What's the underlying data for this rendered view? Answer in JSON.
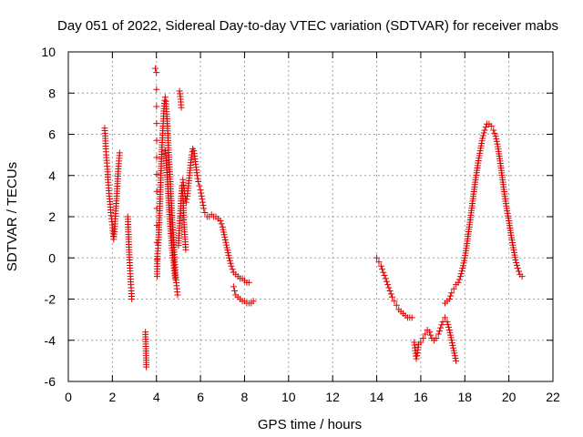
{
  "chart_data": {
    "type": "scatter",
    "title": "Day 051 of 2022, Sidereal Day-to-day VTEC variation (SDTVAR) for receiver mabs",
    "xlabel": "GPS time / hours",
    "ylabel": "SDTVAR / TECUs",
    "xlim": [
      0,
      22
    ],
    "ylim": [
      -6,
      10
    ],
    "xticks": [
      0,
      2,
      4,
      6,
      8,
      10,
      12,
      14,
      16,
      18,
      20,
      22
    ],
    "yticks": [
      -6,
      -4,
      -2,
      0,
      2,
      4,
      6,
      8,
      10
    ],
    "xtick_labels": [
      "0",
      "2",
      "4",
      "6",
      "8",
      "10",
      "12",
      "14",
      "16",
      "18",
      "20",
      "22"
    ],
    "ytick_labels": [
      "-6",
      "-4",
      "-2",
      "0",
      "2",
      "4",
      "6",
      "8",
      "10"
    ],
    "grid": true,
    "marker": "+",
    "color": "#e00000",
    "series": [
      {
        "name": "SDTVAR",
        "segments": [
          {
            "points": [
              [
                1.65,
                6.3
              ],
              [
                1.68,
                5.8
              ],
              [
                1.7,
                5.3
              ],
              [
                1.72,
                5.0
              ],
              [
                1.75,
                4.6
              ],
              [
                1.78,
                4.3
              ],
              [
                1.8,
                3.8
              ],
              [
                1.83,
                3.4
              ],
              [
                1.86,
                3.0
              ],
              [
                1.9,
                2.6
              ],
              [
                1.93,
                2.2
              ],
              [
                1.96,
                1.9
              ],
              [
                2.0,
                1.6
              ],
              [
                2.03,
                1.2
              ],
              [
                2.06,
                0.9
              ],
              [
                2.1,
                1.4
              ],
              [
                2.13,
                1.9
              ],
              [
                2.16,
                2.4
              ],
              [
                2.2,
                3.0
              ],
              [
                2.23,
                3.6
              ],
              [
                2.26,
                4.2
              ],
              [
                2.3,
                4.7
              ],
              [
                2.33,
                5.1
              ]
            ]
          },
          {
            "points": [
              [
                2.7,
                2.0
              ],
              [
                2.72,
                1.5
              ],
              [
                2.74,
                0.9
              ],
              [
                2.76,
                0.4
              ],
              [
                2.78,
                -0.1
              ],
              [
                2.8,
                -0.5
              ],
              [
                2.82,
                -0.9
              ],
              [
                2.84,
                -1.3
              ],
              [
                2.86,
                -1.6
              ],
              [
                2.88,
                -2.0
              ]
            ]
          },
          {
            "points": [
              [
                3.5,
                -3.6
              ],
              [
                3.52,
                -4.3
              ],
              [
                3.54,
                -5.3
              ]
            ]
          },
          {
            "points": [
              [
                3.95,
                9.2
              ],
              [
                4.0,
                9.0
              ],
              [
                4.03,
                -0.9
              ],
              [
                4.05,
                0.2
              ],
              [
                4.08,
                0.6
              ],
              [
                4.1,
                1.0
              ],
              [
                4.12,
                1.6
              ],
              [
                4.15,
                2.4
              ],
              [
                4.18,
                3.2
              ],
              [
                4.2,
                4.0
              ],
              [
                4.23,
                4.8
              ],
              [
                4.26,
                5.6
              ],
              [
                4.3,
                6.4
              ],
              [
                4.33,
                7.0
              ],
              [
                4.36,
                7.5
              ],
              [
                4.4,
                7.8
              ],
              [
                4.43,
                7.6
              ],
              [
                4.46,
                7.1
              ],
              [
                4.5,
                6.4
              ],
              [
                4.53,
                5.7
              ],
              [
                4.56,
                5.0
              ],
              [
                4.6,
                4.3
              ],
              [
                4.63,
                3.7
              ],
              [
                4.66,
                3.0
              ],
              [
                4.7,
                2.3
              ],
              [
                4.73,
                1.6
              ],
              [
                4.76,
                1.0
              ],
              [
                4.8,
                0.4
              ],
              [
                4.83,
                -0.2
              ],
              [
                4.86,
                -0.7
              ],
              [
                4.9,
                -1.2
              ],
              [
                4.93,
                -1.5
              ],
              [
                4.96,
                -1.8
              ]
            ]
          },
          {
            "points": [
              [
                4.4,
                5.2
              ],
              [
                4.45,
                4.6
              ],
              [
                4.5,
                3.8
              ],
              [
                4.55,
                2.9
              ],
              [
                4.6,
                2.0
              ],
              [
                4.65,
                1.3
              ],
              [
                4.7,
                0.6
              ],
              [
                4.75,
                0.0
              ],
              [
                4.8,
                -0.5
              ],
              [
                4.85,
                -1.0
              ]
            ]
          },
          {
            "points": [
              [
                5.0,
                0.6
              ],
              [
                5.03,
                1.2
              ],
              [
                5.06,
                1.8
              ],
              [
                5.1,
                2.4
              ],
              [
                5.13,
                3.0
              ],
              [
                5.16,
                3.5
              ],
              [
                5.2,
                3.0
              ],
              [
                5.23,
                2.3
              ],
              [
                5.26,
                1.5
              ],
              [
                5.3,
                0.9
              ],
              [
                5.33,
                0.4
              ]
            ]
          },
          {
            "points": [
              [
                5.05,
                8.1
              ],
              [
                5.1,
                7.7
              ],
              [
                5.13,
                7.3
              ]
            ]
          },
          {
            "points": [
              [
                5.2,
                3.8
              ],
              [
                5.25,
                3.4
              ],
              [
                5.3,
                3.0
              ],
              [
                5.35,
                2.7
              ],
              [
                5.4,
                3.0
              ],
              [
                5.45,
                3.5
              ],
              [
                5.5,
                4.0
              ],
              [
                5.55,
                4.5
              ],
              [
                5.6,
                5.0
              ],
              [
                5.65,
                5.3
              ],
              [
                5.7,
                5.2
              ],
              [
                5.75,
                4.8
              ],
              [
                5.8,
                4.4
              ],
              [
                5.85,
                4.0
              ],
              [
                5.9,
                3.7
              ],
              [
                5.95,
                3.5
              ],
              [
                6.0,
                3.3
              ],
              [
                6.05,
                3.0
              ],
              [
                6.1,
                2.7
              ],
              [
                6.15,
                2.4
              ],
              [
                6.2,
                2.2
              ],
              [
                6.3,
                2.0
              ],
              [
                6.4,
                2.0
              ],
              [
                6.5,
                2.1
              ],
              [
                6.6,
                2.0
              ],
              [
                6.7,
                2.0
              ],
              [
                6.8,
                1.9
              ],
              [
                6.9,
                1.8
              ],
              [
                7.0,
                1.5
              ],
              [
                7.1,
                1.0
              ],
              [
                7.2,
                0.5
              ],
              [
                7.3,
                0.0
              ],
              [
                7.4,
                -0.4
              ],
              [
                7.5,
                -0.7
              ],
              [
                7.6,
                -0.8
              ],
              [
                7.7,
                -0.9
              ],
              [
                7.8,
                -1.0
              ],
              [
                7.9,
                -1.0
              ],
              [
                8.0,
                -1.1
              ],
              [
                8.1,
                -1.2
              ],
              [
                8.2,
                -1.2
              ]
            ]
          },
          {
            "points": [
              [
                7.5,
                -1.4
              ],
              [
                7.55,
                -1.6
              ],
              [
                7.6,
                -1.8
              ],
              [
                7.7,
                -1.9
              ],
              [
                7.8,
                -2.0
              ],
              [
                7.9,
                -2.1
              ],
              [
                8.0,
                -2.1
              ],
              [
                8.1,
                -2.2
              ],
              [
                8.2,
                -2.2
              ],
              [
                8.3,
                -2.2
              ],
              [
                8.4,
                -2.1
              ]
            ]
          },
          {
            "points": [
              [
                14.0,
                0.0
              ],
              [
                14.1,
                -0.2
              ],
              [
                14.2,
                -0.4
              ],
              [
                14.3,
                -0.7
              ],
              [
                14.4,
                -1.0
              ],
              [
                14.5,
                -1.3
              ],
              [
                14.6,
                -1.6
              ],
              [
                14.7,
                -1.9
              ],
              [
                14.8,
                -2.1
              ],
              [
                14.9,
                -2.3
              ],
              [
                15.0,
                -2.5
              ],
              [
                15.1,
                -2.6
              ],
              [
                15.2,
                -2.7
              ],
              [
                15.3,
                -2.8
              ],
              [
                15.4,
                -2.9
              ],
              [
                15.5,
                -2.9
              ],
              [
                15.6,
                -2.9
              ]
            ]
          },
          {
            "points": [
              [
                15.7,
                -4.1
              ],
              [
                15.75,
                -4.5
              ],
              [
                15.8,
                -4.9
              ],
              [
                15.85,
                -4.6
              ],
              [
                15.9,
                -4.2
              ],
              [
                16.0,
                -4.1
              ],
              [
                16.1,
                -3.9
              ],
              [
                16.2,
                -3.7
              ],
              [
                16.3,
                -3.5
              ],
              [
                16.4,
                -3.6
              ],
              [
                16.5,
                -3.9
              ],
              [
                16.6,
                -4.0
              ],
              [
                16.7,
                -3.9
              ],
              [
                16.8,
                -3.7
              ],
              [
                16.9,
                -3.4
              ],
              [
                17.0,
                -3.1
              ],
              [
                17.1,
                -2.9
              ],
              [
                17.2,
                -3.1
              ],
              [
                17.3,
                -3.5
              ],
              [
                17.4,
                -4.0
              ],
              [
                17.5,
                -4.5
              ],
              [
                17.6,
                -5.0
              ]
            ]
          },
          {
            "points": [
              [
                17.1,
                -2.2
              ],
              [
                17.2,
                -2.1
              ],
              [
                17.3,
                -2.0
              ],
              [
                17.4,
                -1.7
              ],
              [
                17.5,
                -1.5
              ],
              [
                17.6,
                -1.3
              ],
              [
                17.7,
                -1.2
              ],
              [
                17.8,
                -0.9
              ],
              [
                17.9,
                -0.5
              ],
              [
                18.0,
                0.0
              ],
              [
                18.1,
                0.7
              ],
              [
                18.2,
                1.5
              ],
              [
                18.3,
                2.3
              ],
              [
                18.4,
                3.1
              ],
              [
                18.5,
                3.9
              ],
              [
                18.6,
                4.6
              ],
              [
                18.7,
                5.2
              ],
              [
                18.8,
                5.8
              ],
              [
                18.9,
                6.2
              ],
              [
                19.0,
                6.5
              ],
              [
                19.1,
                6.5
              ],
              [
                19.2,
                6.4
              ],
              [
                19.3,
                6.2
              ],
              [
                19.4,
                5.9
              ],
              [
                19.5,
                5.4
              ],
              [
                19.6,
                4.7
              ],
              [
                19.7,
                3.9
              ],
              [
                19.8,
                3.1
              ],
              [
                19.9,
                2.4
              ],
              [
                20.0,
                1.8
              ],
              [
                20.1,
                1.1
              ],
              [
                20.2,
                0.5
              ],
              [
                20.3,
                -0.1
              ],
              [
                20.4,
                -0.5
              ],
              [
                20.5,
                -0.8
              ],
              [
                20.6,
                -0.9
              ]
            ]
          }
        ]
      }
    ]
  }
}
